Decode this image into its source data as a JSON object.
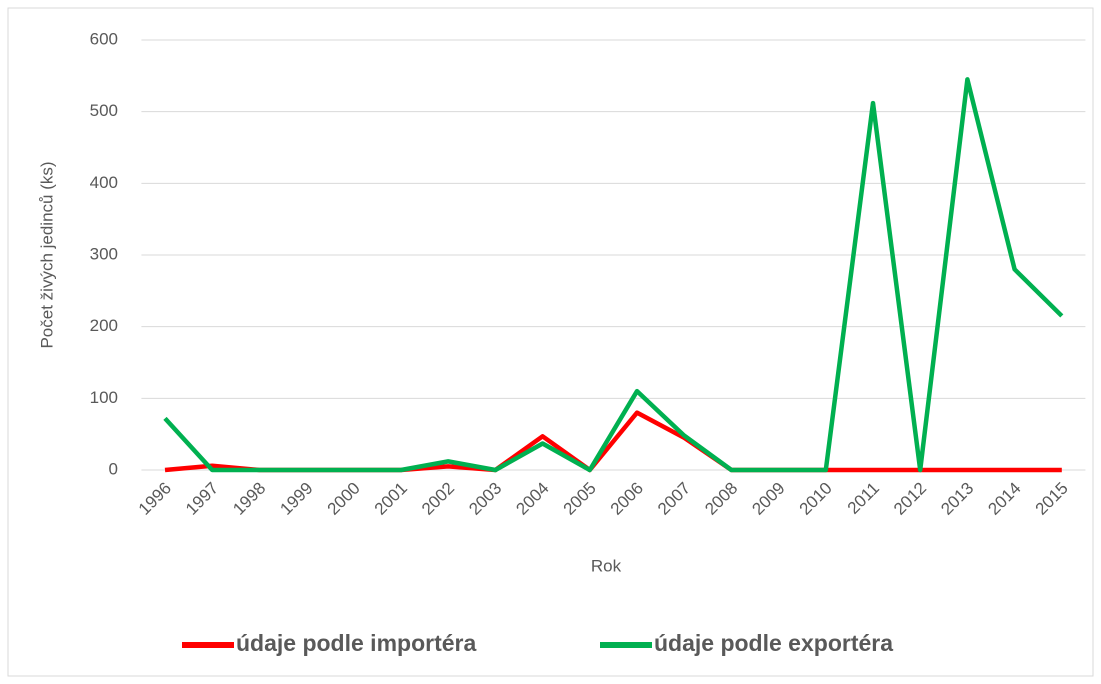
{
  "chart_data": {
    "type": "line",
    "x_label": "Rok",
    "y_label": "Počet živých jedinců (ks)",
    "categories": [
      "1996",
      "1997",
      "1998",
      "1999",
      "2000",
      "2001",
      "2002",
      "2003",
      "2004",
      "2005",
      "2006",
      "2007",
      "2008",
      "2009",
      "2010",
      "2011",
      "2012",
      "2013",
      "2014",
      "2015"
    ],
    "series": [
      {
        "name": "údaje podle importéra",
        "color": "#ff0000",
        "values": [
          0,
          6,
          0,
          0,
          0,
          0,
          5,
          0,
          47,
          0,
          80,
          45,
          0,
          0,
          0,
          0,
          0,
          0,
          0,
          0
        ]
      },
      {
        "name": "údaje podle exportéra",
        "color": "#00b050",
        "values": [
          72,
          0,
          0,
          0,
          0,
          0,
          12,
          0,
          37,
          0,
          110,
          48,
          0,
          0,
          0,
          512,
          0,
          545,
          280,
          215
        ]
      }
    ],
    "ylim": [
      0,
      600
    ],
    "yticks": [
      0,
      100,
      200,
      300,
      400,
      500,
      600
    ],
    "grid": true,
    "legend": "bottom"
  }
}
